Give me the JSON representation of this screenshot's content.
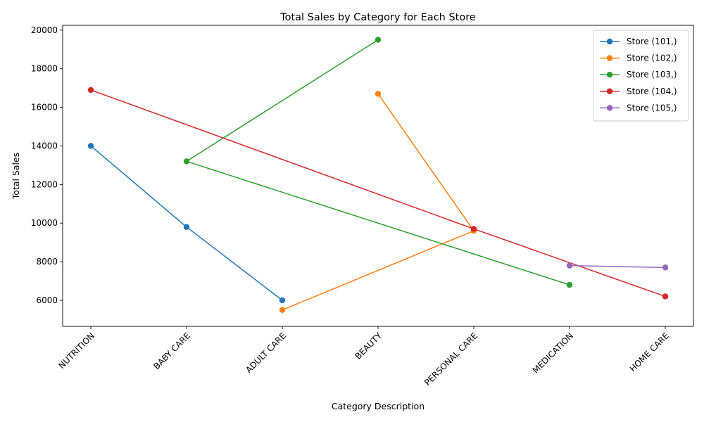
{
  "chart_data": {
    "type": "line",
    "title": "Total Sales by Category for Each Store",
    "xlabel": "Category Description",
    "ylabel": "Total Sales",
    "categories": [
      "NUTRITION",
      "BABY CARE",
      "ADULT CARE",
      "BEAUTY",
      "PERSONAL CARE",
      "MEDICATION",
      "HOME CARE"
    ],
    "y_ticks": [
      6000,
      8000,
      10000,
      12000,
      14000,
      16000,
      18000,
      20000
    ],
    "ylim": [
      4650,
      20250
    ],
    "grid": false,
    "legend_position": "top-right",
    "series": [
      {
        "name": "Store (101,)",
        "color": "#1f77b4",
        "points": [
          {
            "x": "NUTRITION",
            "y": 14000
          },
          {
            "x": "BABY CARE",
            "y": 9800
          },
          {
            "x": "ADULT CARE",
            "y": 6000
          }
        ]
      },
      {
        "name": "Store (102,)",
        "color": "#ff7f0e",
        "points": [
          {
            "x": "BEAUTY",
            "y": 16700
          },
          {
            "x": "PERSONAL CARE",
            "y": 9600
          },
          {
            "x": "ADULT CARE",
            "y": 5500
          }
        ]
      },
      {
        "name": "Store (103,)",
        "color": "#2ca02c",
        "points": [
          {
            "x": "BEAUTY",
            "y": 19500
          },
          {
            "x": "BABY CARE",
            "y": 13200
          },
          {
            "x": "MEDICATION",
            "y": 6800
          }
        ]
      },
      {
        "name": "Store (104,)",
        "color": "#d62728",
        "points": [
          {
            "x": "NUTRITION",
            "y": 16900
          },
          {
            "x": "PERSONAL CARE",
            "y": 9700
          },
          {
            "x": "HOME CARE",
            "y": 6200
          }
        ]
      },
      {
        "name": "Store (105,)",
        "color": "#9467bd",
        "points": [
          {
            "x": "MEDICATION",
            "y": 7800
          },
          {
            "x": "HOME CARE",
            "y": 7700
          }
        ]
      }
    ]
  }
}
